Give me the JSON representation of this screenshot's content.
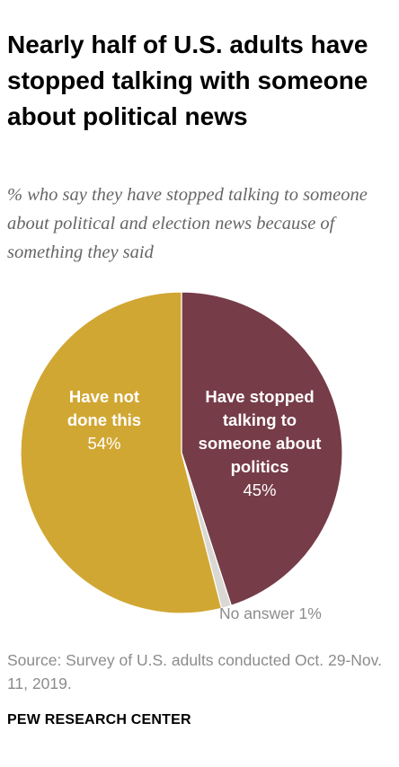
{
  "header": {
    "title": "Nearly half of U.S. adults have stopped talking with someone about political news",
    "subtitle": "% who say they have stopped talking to someone about political and election news because of something they said"
  },
  "chart_data": {
    "type": "pie",
    "title": "Nearly half of U.S. adults have stopped talking with someone about political news",
    "subtitle": "% who say they have stopped talking to someone about political and election news because of something they said",
    "slices": [
      {
        "label": "Have stopped talking to someone about politics",
        "label_lines": [
          "Have stopped",
          "talking to",
          "someone about",
          "politics"
        ],
        "value": 45,
        "display": "45%",
        "color": "#763c48"
      },
      {
        "label": "No answer",
        "label_lines": [
          "No answer 1%"
        ],
        "value": 1,
        "display": "",
        "color": "#d9d8d4"
      },
      {
        "label": "Have not done this",
        "label_lines": [
          "Have not",
          "done this"
        ],
        "value": 54,
        "display": "54%",
        "color": "#d1a733"
      }
    ],
    "start_angle_deg": 0,
    "direction": "clockwise"
  },
  "footer": {
    "source": "Source: Survey of U.S. adults conducted Oct. 29-Nov. 11, 2019.",
    "brand": "PEW RESEARCH CENTER"
  }
}
